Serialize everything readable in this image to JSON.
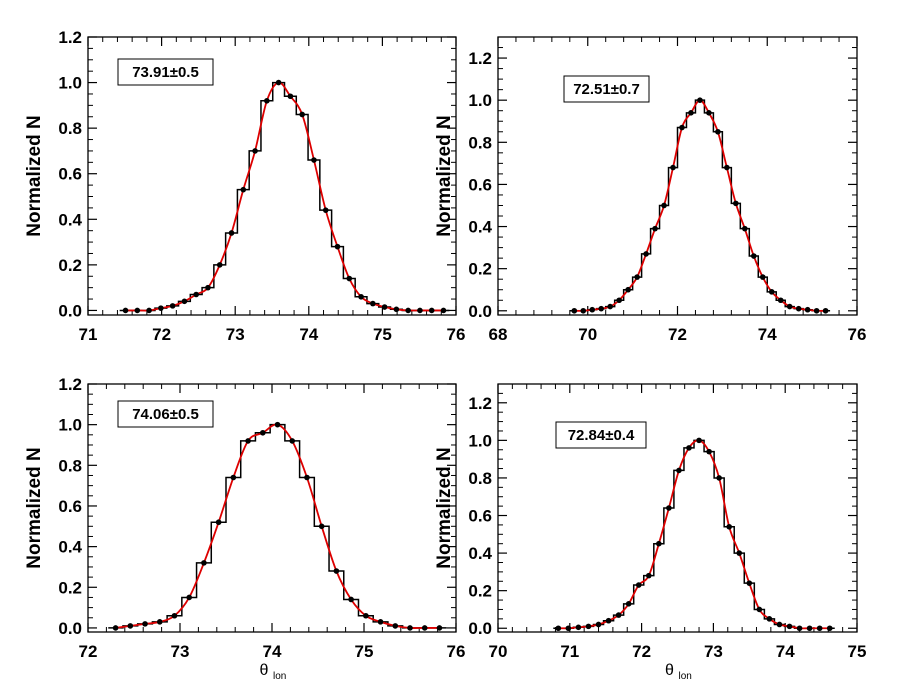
{
  "chart_data": [
    {
      "type": "line",
      "title": "",
      "xlabel": "",
      "ylabel": "Normalized N",
      "xlim": [
        71,
        76
      ],
      "ylim": [
        -0.02,
        1.2
      ],
      "xticks": [
        71,
        72,
        73,
        74,
        75,
        76
      ],
      "yticks": [
        0.0,
        0.2,
        0.4,
        0.6,
        0.8,
        1.0,
        1.2
      ],
      "annotation": "73.91±0.5",
      "annotation_position": "top-left",
      "grid": false,
      "fit_color": "#dd0000",
      "bin_width": 0.16,
      "x": [
        71.51,
        71.67,
        71.83,
        71.99,
        72.15,
        72.31,
        72.47,
        72.63,
        72.79,
        72.95,
        73.11,
        73.27,
        73.43,
        73.59,
        73.75,
        73.91,
        74.07,
        74.23,
        74.39,
        74.55,
        74.71,
        74.87,
        75.03,
        75.19,
        75.35,
        75.51,
        75.67,
        75.83
      ],
      "values": [
        0.0,
        0.0,
        0.0,
        0.01,
        0.02,
        0.04,
        0.07,
        0.1,
        0.2,
        0.34,
        0.53,
        0.7,
        0.92,
        1.0,
        0.94,
        0.86,
        0.66,
        0.44,
        0.28,
        0.14,
        0.06,
        0.03,
        0.015,
        0.005,
        0.0,
        0.0,
        0.0,
        0.0
      ]
    },
    {
      "type": "line",
      "title": "",
      "xlabel": "",
      "ylabel": "Normalized N",
      "xlim": [
        68,
        76
      ],
      "ylim": [
        -0.02,
        1.3
      ],
      "xticks": [
        68,
        70,
        72,
        74,
        76
      ],
      "yticks": [
        0.0,
        0.2,
        0.4,
        0.6,
        0.8,
        1.0,
        1.2
      ],
      "annotation": "72.51±0.7",
      "annotation_position": "top-left",
      "grid": false,
      "fit_color": "#dd0000",
      "bin_width": 0.2,
      "x": [
        69.7,
        69.9,
        70.1,
        70.3,
        70.5,
        70.7,
        70.9,
        71.1,
        71.3,
        71.5,
        71.7,
        71.9,
        72.1,
        72.3,
        72.5,
        72.7,
        72.9,
        73.1,
        73.3,
        73.5,
        73.7,
        73.9,
        74.1,
        74.3,
        74.5,
        74.7,
        74.9,
        75.1,
        75.3
      ],
      "values": [
        0.0,
        0.0,
        0.005,
        0.01,
        0.02,
        0.05,
        0.1,
        0.16,
        0.27,
        0.39,
        0.5,
        0.68,
        0.87,
        0.94,
        1.0,
        0.94,
        0.85,
        0.68,
        0.51,
        0.39,
        0.26,
        0.16,
        0.09,
        0.05,
        0.02,
        0.01,
        0.005,
        0.0,
        0.0
      ]
    },
    {
      "type": "line",
      "title": "",
      "xlabel": "θ",
      "xlabel_sub": "lon",
      "ylabel": "Normalized N",
      "xlim": [
        72,
        76
      ],
      "ylim": [
        -0.02,
        1.2
      ],
      "xticks": [
        72,
        73,
        74,
        75,
        76
      ],
      "yticks": [
        0.0,
        0.2,
        0.4,
        0.6,
        0.8,
        1.0,
        1.2
      ],
      "annotation": "74.06±0.5",
      "annotation_position": "top-left",
      "grid": false,
      "fit_color": "#dd0000",
      "bin_width": 0.16,
      "x": [
        72.3,
        72.46,
        72.62,
        72.78,
        72.94,
        73.1,
        73.26,
        73.42,
        73.58,
        73.74,
        73.9,
        74.06,
        74.22,
        74.38,
        74.54,
        74.7,
        74.86,
        75.02,
        75.18,
        75.34,
        75.5,
        75.66,
        75.82
      ],
      "values": [
        0.0,
        0.01,
        0.02,
        0.03,
        0.06,
        0.15,
        0.32,
        0.52,
        0.74,
        0.92,
        0.96,
        1.0,
        0.92,
        0.74,
        0.5,
        0.28,
        0.14,
        0.06,
        0.03,
        0.01,
        0.0,
        0.0,
        0.0
      ]
    },
    {
      "type": "line",
      "title": "",
      "xlabel": "θ",
      "xlabel_sub": "lon",
      "ylabel": "Normalized N",
      "xlim": [
        70,
        75
      ],
      "ylim": [
        -0.02,
        1.3
      ],
      "xticks": [
        70,
        71,
        72,
        73,
        74,
        75
      ],
      "yticks": [
        0.0,
        0.2,
        0.4,
        0.6,
        0.8,
        1.0,
        1.2
      ],
      "annotation": "72.84±0.4",
      "annotation_position": "top-left",
      "grid": false,
      "fit_color": "#dd0000",
      "bin_width": 0.14,
      "x": [
        70.84,
        70.98,
        71.12,
        71.26,
        71.4,
        71.54,
        71.68,
        71.82,
        71.96,
        72.1,
        72.24,
        72.38,
        72.52,
        72.66,
        72.8,
        72.94,
        73.08,
        73.22,
        73.36,
        73.5,
        73.64,
        73.78,
        73.92,
        74.06,
        74.2,
        74.34,
        74.48,
        74.62
      ],
      "values": [
        0.0,
        0.0,
        0.005,
        0.01,
        0.02,
        0.04,
        0.07,
        0.13,
        0.23,
        0.28,
        0.45,
        0.64,
        0.84,
        0.96,
        1.0,
        0.94,
        0.8,
        0.54,
        0.4,
        0.24,
        0.1,
        0.05,
        0.02,
        0.01,
        0.0,
        0.0,
        0.0,
        0.0
      ]
    }
  ]
}
